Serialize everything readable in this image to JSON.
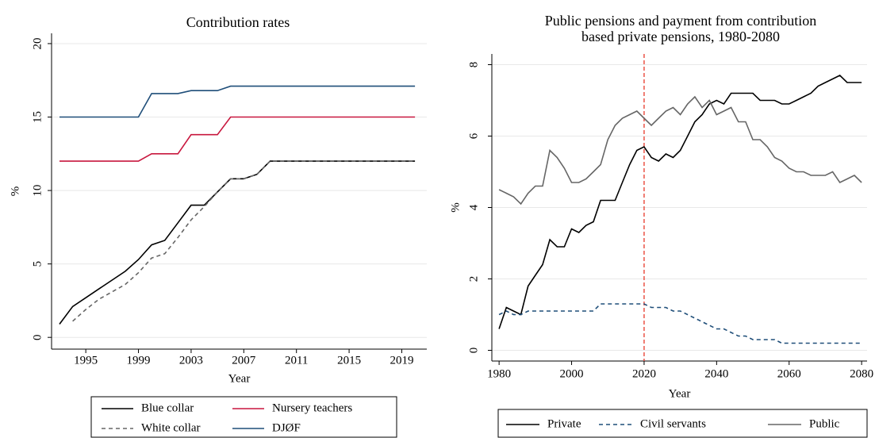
{
  "chart_data": [
    {
      "type": "line",
      "title": [
        "Contribution rates"
      ],
      "x_label": "Year",
      "y_label": "%",
      "x": [
        1993,
        1994,
        1995,
        1996,
        1997,
        1998,
        1999,
        2000,
        2001,
        2002,
        2003,
        2004,
        2005,
        2006,
        2007,
        2008,
        2009,
        2010,
        2011,
        2012,
        2013,
        2014,
        2015,
        2016,
        2017,
        2018,
        2019,
        2020
      ],
      "series": [
        {
          "name": "Blue collar",
          "color": "#000000",
          "style": "solid",
          "values": [
            0.9,
            2.1,
            2.7,
            3.3,
            3.9,
            4.5,
            5.3,
            6.3,
            6.6,
            7.8,
            9.0,
            9.0,
            9.9,
            10.8,
            10.8,
            11.1,
            12,
            12,
            12,
            12,
            12,
            12,
            12,
            12,
            12,
            12,
            12,
            12
          ]
        },
        {
          "name": "Nursery teachers",
          "color": "#c8173e",
          "style": "solid",
          "values": [
            12,
            12,
            12,
            12,
            12,
            12,
            12,
            12.5,
            12.5,
            12.5,
            13.8,
            13.8,
            13.8,
            15,
            15,
            15,
            15,
            15,
            15,
            15,
            15,
            15,
            15,
            15,
            15,
            15,
            15,
            15
          ]
        },
        {
          "name": "White collar",
          "color": "#666666",
          "style": "dash",
          "values": [
            null,
            1.1,
            1.9,
            2.6,
            3.1,
            3.6,
            4.4,
            5.4,
            5.7,
            6.8,
            8.0,
            8.9,
            9.9,
            10.8,
            10.8,
            11.1,
            12,
            12,
            12,
            12,
            12,
            12,
            12,
            12,
            12,
            12,
            12,
            12
          ]
        },
        {
          "name": "DJØF",
          "color": "#1f4e79",
          "style": "solid",
          "values": [
            15,
            15,
            15,
            15,
            15,
            15,
            15,
            16.6,
            16.6,
            16.6,
            16.8,
            16.8,
            16.8,
            17.1,
            17.1,
            17.1,
            17.1,
            17.1,
            17.1,
            17.1,
            17.1,
            17.1,
            17.1,
            17.1,
            17.1,
            17.1,
            17.1,
            17.1
          ]
        }
      ],
      "xlim": [
        1992.4,
        2020.9
      ],
      "xticks": [
        1995,
        1999,
        2003,
        2007,
        2011,
        2015,
        2019
      ],
      "ylim": [
        -0.8,
        20.7
      ],
      "yticks": [
        0,
        5,
        10,
        15,
        20
      ],
      "grid": true,
      "legend": "bottom"
    },
    {
      "type": "line",
      "title": [
        "Public pensions and payment from contribution",
        "based private pensions, 1980-2080"
      ],
      "x_label": "Year",
      "y_label": "%",
      "x": [
        1980,
        1982,
        1984,
        1986,
        1988,
        1990,
        1992,
        1994,
        1996,
        1998,
        2000,
        2002,
        2004,
        2006,
        2008,
        2010,
        2012,
        2014,
        2016,
        2018,
        2020,
        2022,
        2024,
        2026,
        2028,
        2030,
        2032,
        2034,
        2036,
        2038,
        2040,
        2042,
        2044,
        2046,
        2048,
        2050,
        2052,
        2054,
        2056,
        2058,
        2060,
        2062,
        2064,
        2066,
        2068,
        2070,
        2072,
        2074,
        2076,
        2078,
        2080
      ],
      "series": [
        {
          "name": "Private",
          "color": "#000000",
          "style": "solid",
          "values": [
            0.6,
            1.2,
            1.1,
            1.0,
            1.8,
            2.1,
            2.4,
            3.1,
            2.9,
            2.9,
            3.4,
            3.3,
            3.5,
            3.6,
            4.2,
            4.2,
            4.2,
            4.7,
            5.2,
            5.6,
            5.7,
            5.4,
            5.3,
            5.5,
            5.4,
            5.6,
            6.0,
            6.4,
            6.6,
            6.9,
            7.0,
            6.9,
            7.2,
            7.2,
            7.2,
            7.2,
            7.0,
            7.0,
            7.0,
            6.9,
            6.9,
            7.0,
            7.1,
            7.2,
            7.4,
            7.5,
            7.6,
            7.7,
            7.5,
            7.5,
            7.5
          ]
        },
        {
          "name": "Civil servants",
          "color": "#1f4e79",
          "style": "dash",
          "values": [
            1.0,
            1.1,
            1.0,
            1.0,
            1.1,
            1.1,
            1.1,
            1.1,
            1.1,
            1.1,
            1.1,
            1.1,
            1.1,
            1.1,
            1.3,
            1.3,
            1.3,
            1.3,
            1.3,
            1.3,
            1.3,
            1.2,
            1.2,
            1.2,
            1.1,
            1.1,
            1.0,
            0.9,
            0.8,
            0.7,
            0.6,
            0.6,
            0.5,
            0.4,
            0.4,
            0.3,
            0.3,
            0.3,
            0.3,
            0.2,
            0.2,
            0.2,
            0.2,
            0.2,
            0.2,
            0.2,
            0.2,
            0.2,
            0.2,
            0.2,
            0.2
          ]
        },
        {
          "name": "Public",
          "color": "#666666",
          "style": "solid",
          "values": [
            4.5,
            4.4,
            4.3,
            4.1,
            4.4,
            4.6,
            4.6,
            5.6,
            5.4,
            5.1,
            4.7,
            4.7,
            4.8,
            5.0,
            5.2,
            5.9,
            6.3,
            6.5,
            6.6,
            6.7,
            6.5,
            6.3,
            6.5,
            6.7,
            6.8,
            6.6,
            6.9,
            7.1,
            6.8,
            7.0,
            6.6,
            6.7,
            6.8,
            6.4,
            6.4,
            5.9,
            5.9,
            5.7,
            5.4,
            5.3,
            5.1,
            5.0,
            5.0,
            4.9,
            4.9,
            4.9,
            5.0,
            4.7,
            4.8,
            4.9,
            4.7
          ]
        }
      ],
      "vline": {
        "value": 2020,
        "color": "#e8382a"
      },
      "xlim": [
        1978,
        2081.5
      ],
      "xticks": [
        1980,
        2000,
        2020,
        2040,
        2060,
        2080
      ],
      "ylim": [
        -0.3,
        8.3
      ],
      "yticks": [
        0,
        2,
        4,
        6,
        8
      ],
      "grid": true,
      "legend": "bottom"
    }
  ]
}
